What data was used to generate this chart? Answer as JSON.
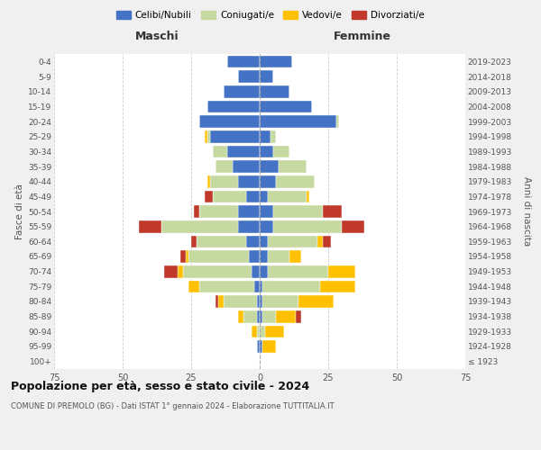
{
  "age_groups": [
    "100+",
    "95-99",
    "90-94",
    "85-89",
    "80-84",
    "75-79",
    "70-74",
    "65-69",
    "60-64",
    "55-59",
    "50-54",
    "45-49",
    "40-44",
    "35-39",
    "30-34",
    "25-29",
    "20-24",
    "15-19",
    "10-14",
    "5-9",
    "0-4"
  ],
  "birth_years": [
    "≤ 1923",
    "1924-1928",
    "1929-1933",
    "1934-1938",
    "1939-1943",
    "1944-1948",
    "1949-1953",
    "1954-1958",
    "1959-1963",
    "1964-1968",
    "1969-1973",
    "1974-1978",
    "1979-1983",
    "1984-1988",
    "1989-1993",
    "1994-1998",
    "1999-2003",
    "2004-2008",
    "2009-2013",
    "2014-2018",
    "2019-2023"
  ],
  "maschi": {
    "celibi": [
      0,
      1,
      0,
      1,
      1,
      2,
      3,
      4,
      5,
      8,
      8,
      5,
      8,
      10,
      12,
      18,
      22,
      19,
      13,
      8,
      12
    ],
    "coniugati": [
      0,
      0,
      1,
      5,
      12,
      20,
      25,
      22,
      18,
      28,
      14,
      12,
      10,
      6,
      5,
      1,
      0,
      0,
      0,
      0,
      0
    ],
    "vedovi": [
      0,
      0,
      2,
      2,
      2,
      4,
      2,
      1,
      0,
      0,
      0,
      0,
      1,
      0,
      0,
      1,
      0,
      0,
      0,
      0,
      0
    ],
    "divorziati": [
      0,
      0,
      0,
      0,
      1,
      0,
      5,
      2,
      2,
      8,
      2,
      3,
      0,
      0,
      0,
      0,
      0,
      0,
      0,
      0,
      0
    ]
  },
  "femmine": {
    "nubili": [
      0,
      1,
      0,
      1,
      1,
      1,
      3,
      3,
      3,
      5,
      5,
      3,
      6,
      7,
      5,
      4,
      28,
      19,
      11,
      5,
      12
    ],
    "coniugate": [
      0,
      0,
      2,
      5,
      13,
      21,
      22,
      8,
      18,
      25,
      18,
      14,
      14,
      10,
      6,
      2,
      1,
      0,
      0,
      0,
      0
    ],
    "vedove": [
      0,
      5,
      7,
      7,
      13,
      13,
      10,
      4,
      2,
      0,
      0,
      1,
      0,
      0,
      0,
      0,
      0,
      0,
      0,
      0,
      0
    ],
    "divorziate": [
      0,
      0,
      0,
      2,
      0,
      0,
      0,
      0,
      3,
      8,
      7,
      0,
      0,
      0,
      0,
      0,
      0,
      0,
      0,
      0,
      0
    ]
  },
  "colors": {
    "celibi": "#4472c4",
    "coniugati": "#c5d9a0",
    "vedovi": "#ffc000",
    "divorziati": "#c0392b"
  },
  "xlim": 75,
  "title": "Popolazione per età, sesso e stato civile - 2024",
  "subtitle": "COMUNE DI PREMOLO (BG) - Dati ISTAT 1° gennaio 2024 - Elaborazione TUTTITALIA.IT",
  "ylabel_left": "Fasce di età",
  "ylabel_right": "Anni di nascita",
  "xlabel_left": "Maschi",
  "xlabel_right": "Femmine",
  "legend_labels": [
    "Celibi/Nubili",
    "Coniugati/e",
    "Vedovi/e",
    "Divorziati/e"
  ],
  "bg_color": "#f0f0f0",
  "plot_bg_color": "#ffffff"
}
